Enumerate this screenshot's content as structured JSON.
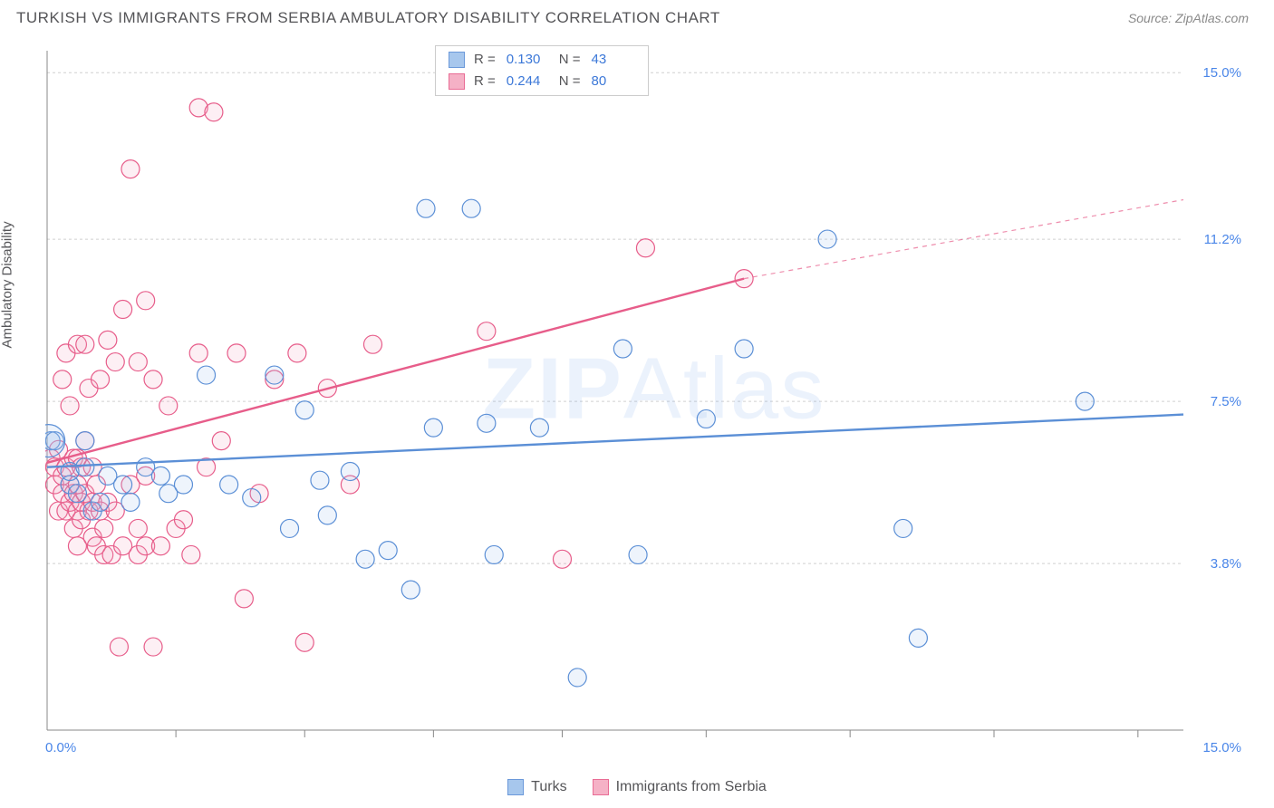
{
  "title": "TURKISH VS IMMIGRANTS FROM SERBIA AMBULATORY DISABILITY CORRELATION CHART",
  "source": "Source: ZipAtlas.com",
  "ylabel": "Ambulatory Disability",
  "watermark_a": "ZIP",
  "watermark_b": "Atlas",
  "chart": {
    "type": "scatter",
    "background": "#ffffff",
    "grid_color": "#d0d0d0",
    "axis_color": "#888888",
    "x_min": 0.0,
    "x_max": 15.0,
    "y_min": 0.0,
    "y_max": 15.5,
    "y_ticks": [
      3.8,
      7.5,
      11.2,
      15.0
    ],
    "y_tick_labels": [
      "3.8%",
      "7.5%",
      "11.2%",
      "15.0%"
    ],
    "x_corner_left": "0.0%",
    "x_corner_right": "15.0%",
    "x_tick_positions": [
      1.7,
      3.4,
      5.1,
      6.8,
      8.7,
      10.6,
      12.5,
      14.4
    ],
    "marker_radius": 10,
    "marker_stroke_width": 1.2,
    "marker_fill_opacity": 0.18
  },
  "series": {
    "turks": {
      "label": "Turks",
      "color_stroke": "#5b8fd6",
      "color_fill": "#9ec1ec",
      "r_label": "R =",
      "r_value": "0.130",
      "n_label": "N =",
      "n_value": "43",
      "trend": {
        "x1": 0.0,
        "y1": 6.0,
        "x2": 15.0,
        "y2": 7.2,
        "width": 2.4,
        "extrapolate_from": 15.0
      },
      "points": [
        [
          0.05,
          6.6
        ],
        [
          0.1,
          6.6
        ],
        [
          0.3,
          5.6
        ],
        [
          0.3,
          5.9
        ],
        [
          0.4,
          5.4
        ],
        [
          0.5,
          6.0
        ],
        [
          0.5,
          6.6
        ],
        [
          0.6,
          5.0
        ],
        [
          0.7,
          5.2
        ],
        [
          0.8,
          5.8
        ],
        [
          1.0,
          5.6
        ],
        [
          1.1,
          5.2
        ],
        [
          1.3,
          6.0
        ],
        [
          1.5,
          5.8
        ],
        [
          1.6,
          5.4
        ],
        [
          1.8,
          5.6
        ],
        [
          2.1,
          8.1
        ],
        [
          2.4,
          5.6
        ],
        [
          2.7,
          5.3
        ],
        [
          3.0,
          8.1
        ],
        [
          3.2,
          4.6
        ],
        [
          3.4,
          7.3
        ],
        [
          3.6,
          5.7
        ],
        [
          3.7,
          4.9
        ],
        [
          4.0,
          5.9
        ],
        [
          4.2,
          3.9
        ],
        [
          4.5,
          4.1
        ],
        [
          4.8,
          3.2
        ],
        [
          5.0,
          11.9
        ],
        [
          5.1,
          6.9
        ],
        [
          5.6,
          11.9
        ],
        [
          5.8,
          7.0
        ],
        [
          5.9,
          4.0
        ],
        [
          6.5,
          6.9
        ],
        [
          7.0,
          1.2
        ],
        [
          7.6,
          8.7
        ],
        [
          7.8,
          4.0
        ],
        [
          8.7,
          7.1
        ],
        [
          9.2,
          8.7
        ],
        [
          10.3,
          11.2
        ],
        [
          11.3,
          4.6
        ],
        [
          11.5,
          2.1
        ],
        [
          13.7,
          7.5
        ]
      ]
    },
    "serbia": {
      "label": "Immigrants from Serbia",
      "color_stroke": "#e75d8a",
      "color_fill": "#f4a9c0",
      "r_label": "R =",
      "r_value": "0.244",
      "n_label": "N =",
      "n_value": "80",
      "trend": {
        "x1": 0.0,
        "y1": 6.1,
        "x2": 9.2,
        "y2": 10.3,
        "width": 2.4,
        "extrapolate_from": 9.2,
        "extrapolate_to": 15.0,
        "extrapolate_y": 12.1
      },
      "points": [
        [
          0.05,
          6.2
        ],
        [
          0.1,
          5.6
        ],
        [
          0.1,
          6.0
        ],
        [
          0.15,
          5.0
        ],
        [
          0.15,
          6.4
        ],
        [
          0.2,
          5.4
        ],
        [
          0.2,
          5.8
        ],
        [
          0.2,
          8.0
        ],
        [
          0.25,
          5.0
        ],
        [
          0.25,
          6.0
        ],
        [
          0.25,
          8.6
        ],
        [
          0.3,
          5.2
        ],
        [
          0.3,
          5.6
        ],
        [
          0.3,
          7.4
        ],
        [
          0.35,
          4.6
        ],
        [
          0.35,
          5.4
        ],
        [
          0.35,
          6.2
        ],
        [
          0.4,
          4.2
        ],
        [
          0.4,
          5.0
        ],
        [
          0.4,
          5.6
        ],
        [
          0.4,
          6.2
        ],
        [
          0.4,
          8.8
        ],
        [
          0.45,
          4.8
        ],
        [
          0.45,
          5.2
        ],
        [
          0.45,
          6.0
        ],
        [
          0.5,
          5.4
        ],
        [
          0.5,
          6.6
        ],
        [
          0.5,
          8.8
        ],
        [
          0.55,
          5.0
        ],
        [
          0.55,
          7.8
        ],
        [
          0.6,
          4.4
        ],
        [
          0.6,
          5.2
        ],
        [
          0.6,
          6.0
        ],
        [
          0.65,
          4.2
        ],
        [
          0.65,
          5.6
        ],
        [
          0.7,
          5.0
        ],
        [
          0.7,
          8.0
        ],
        [
          0.75,
          4.0
        ],
        [
          0.75,
          4.6
        ],
        [
          0.8,
          5.2
        ],
        [
          0.8,
          8.9
        ],
        [
          0.85,
          4.0
        ],
        [
          0.9,
          5.0
        ],
        [
          0.9,
          8.4
        ],
        [
          0.95,
          1.9
        ],
        [
          1.0,
          4.2
        ],
        [
          1.0,
          9.6
        ],
        [
          1.1,
          5.6
        ],
        [
          1.1,
          12.8
        ],
        [
          1.2,
          4.0
        ],
        [
          1.2,
          4.6
        ],
        [
          1.2,
          8.4
        ],
        [
          1.3,
          4.2
        ],
        [
          1.3,
          5.8
        ],
        [
          1.3,
          9.8
        ],
        [
          1.4,
          1.9
        ],
        [
          1.4,
          8.0
        ],
        [
          1.5,
          4.2
        ],
        [
          1.6,
          7.4
        ],
        [
          1.7,
          4.6
        ],
        [
          1.8,
          4.8
        ],
        [
          1.9,
          4.0
        ],
        [
          2.0,
          14.2
        ],
        [
          2.0,
          8.6
        ],
        [
          2.1,
          6.0
        ],
        [
          2.2,
          14.1
        ],
        [
          2.3,
          6.6
        ],
        [
          2.5,
          8.6
        ],
        [
          2.6,
          3.0
        ],
        [
          2.8,
          5.4
        ],
        [
          3.0,
          8.0
        ],
        [
          3.3,
          8.6
        ],
        [
          3.4,
          2.0
        ],
        [
          3.7,
          7.8
        ],
        [
          4.0,
          5.6
        ],
        [
          4.3,
          8.8
        ],
        [
          5.8,
          9.1
        ],
        [
          6.8,
          3.9
        ],
        [
          7.9,
          11.0
        ],
        [
          9.2,
          10.3
        ]
      ]
    }
  },
  "legend_bottom": {
    "items": [
      "turks",
      "serbia"
    ]
  }
}
